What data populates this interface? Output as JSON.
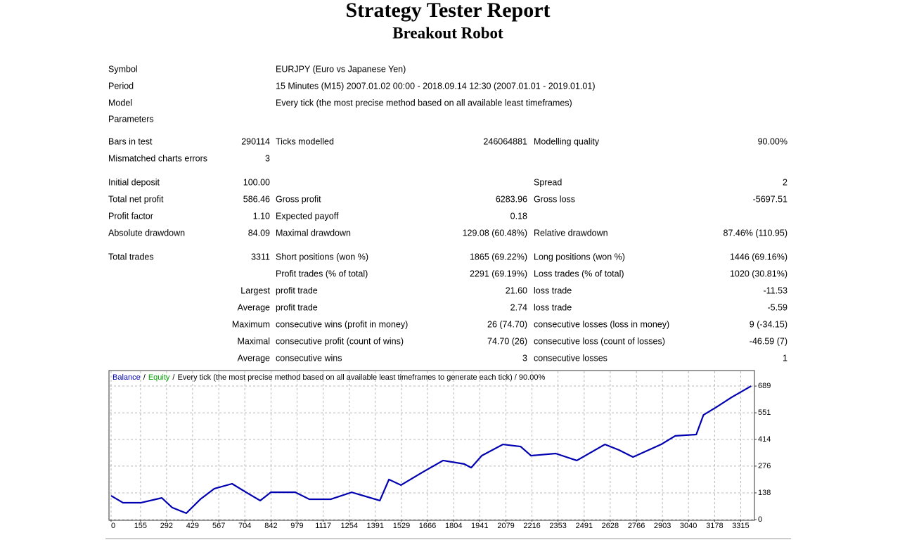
{
  "header": {
    "title": "Strategy Tester Report",
    "subtitle": "Breakout Robot"
  },
  "info": [
    {
      "label": "Symbol",
      "value": "EURJPY (Euro vs Japanese Yen)"
    },
    {
      "label": "Period",
      "value": "15 Minutes (M15) 2007.01.02 00:00 - 2018.09.14 12:30 (2007.01.01 - 2019.01.01)"
    },
    {
      "label": "Model",
      "value": "Every tick (the most precise method based on all available least timeframes)"
    },
    {
      "label": "Parameters"
    }
  ],
  "stats": [
    [
      "Bars in test",
      "290114",
      "Ticks modelled",
      "246064881",
      "Modelling quality",
      "90.00%"
    ],
    [
      "Mismatched charts errors",
      "3",
      null,
      null,
      null,
      null
    ],
    [
      "Initial deposit",
      "100.00",
      null,
      null,
      "Spread",
      "2"
    ],
    [
      "Total net profit",
      "586.46",
      "Gross profit",
      "6283.96",
      "Gross loss",
      "-5697.51"
    ],
    [
      "Profit factor",
      "1.10",
      "Expected payoff",
      "0.18",
      null,
      null
    ],
    [
      "Absolute drawdown",
      "84.09",
      "Maximal drawdown",
      "129.08 (60.48%)",
      "Relative drawdown",
      "87.46% (110.95)"
    ],
    [
      "Total trades",
      "3311",
      "Short positions (won %)",
      "1865 (69.22%)",
      "Long positions (won %)",
      "1446 (69.16%)"
    ],
    [
      null,
      null,
      "Profit trades (% of total)",
      "2291 (69.19%)",
      "Loss trades (% of total)",
      "1020 (30.81%)"
    ],
    [
      null,
      "Largest",
      "profit trade",
      "21.60",
      "loss trade",
      "-11.53"
    ],
    [
      null,
      "Average",
      "profit trade",
      "2.74",
      "loss trade",
      "-5.59"
    ],
    [
      null,
      "Maximum",
      "consecutive wins (profit in money)",
      "26 (74.70)",
      "consecutive losses (loss in money)",
      "9 (-34.15)"
    ],
    [
      null,
      "Maximal",
      "consecutive profit (count of wins)",
      "74.70 (26)",
      "consecutive loss (count of losses)",
      "-46.59 (7)"
    ],
    [
      null,
      "Average",
      "consecutive wins",
      "3",
      "consecutive losses",
      "1"
    ]
  ],
  "chart_data": {
    "type": "line",
    "equity_name": "Equity",
    "equity_color": "#00a000",
    "separator": "/",
    "caption": "Every tick (the most precise method based on all available least timeframes to generate each tick) / 90.00%",
    "x": [
      0,
      63,
      156,
      267,
      322,
      396,
      470,
      544,
      637,
      711,
      785,
      841,
      970,
      1044,
      1156,
      1267,
      1415,
      1463,
      1526,
      1637,
      1748,
      1859,
      1896,
      1952,
      2063,
      2156,
      2211,
      2341,
      2452,
      2600,
      2674,
      2748,
      2896,
      2970,
      3081,
      3119,
      3193,
      3267,
      3370
    ],
    "series": [
      {
        "name": "Balance",
        "color": "#0000b0",
        "values": [
          123,
          87,
          87,
          112,
          62,
          33,
          105,
          160,
          185,
          141,
          98,
          141,
          141,
          105,
          105,
          141,
          98,
          207,
          178,
          243,
          305,
          287,
          268,
          330,
          388,
          377,
          330,
          341,
          305,
          388,
          359,
          323,
          388,
          432,
          439,
          540,
          584,
          631,
          689
        ]
      }
    ],
    "xlim": [
      0,
      3380
    ],
    "xticks": [
      0,
      155,
      292,
      429,
      567,
      704,
      842,
      979,
      1117,
      1254,
      1391,
      1529,
      1666,
      1804,
      1941,
      2079,
      2216,
      2353,
      2491,
      2628,
      2766,
      2903,
      3040,
      3178,
      3315
    ],
    "ylim": [
      0,
      769
    ],
    "yticks": [
      0,
      138,
      276,
      414,
      551,
      689
    ],
    "grid": true
  }
}
